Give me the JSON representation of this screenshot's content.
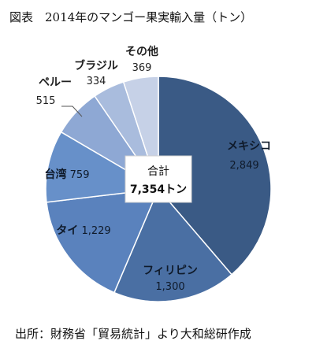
{
  "title": "図表　2014年のマンゴー果実輸入量（トン）",
  "source": "出所：財務省「貿易統計」より大和総研作成",
  "chart_data": {
    "type": "pie",
    "categories": [
      "メキシコ",
      "フィリピン",
      "タイ",
      "台湾",
      "ペルー",
      "ブラジル",
      "その他"
    ],
    "values": [
      2849,
      1300,
      1229,
      759,
      515,
      334,
      369
    ],
    "value_labels": [
      "2,849",
      "1,300",
      "1,229",
      "759",
      "515",
      "334",
      "369"
    ],
    "colors": [
      "#3a5a85",
      "#4a6fa3",
      "#5a82bd",
      "#6790c9",
      "#8ea8d4",
      "#a9bcdd",
      "#c6d1e7"
    ],
    "center_label": "合計",
    "center_total": "7,354トン"
  }
}
